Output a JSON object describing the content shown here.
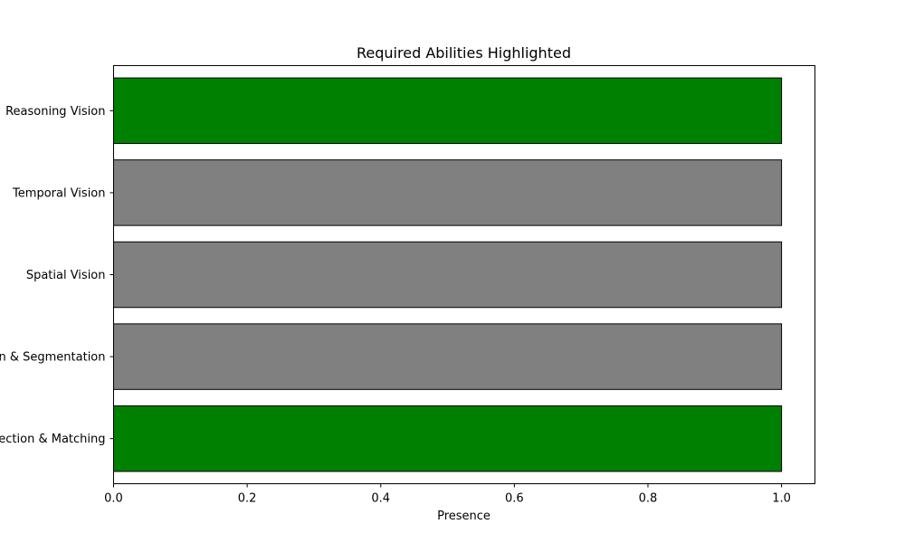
{
  "chart_data": {
    "type": "bar",
    "orientation": "horizontal",
    "title": "Required Abilities Highlighted",
    "xlabel": "Presence",
    "ylabel": "",
    "categories": [
      "Detection & Matching",
      "Recognition & Segmentation",
      "Spatial Vision",
      "Temporal Vision",
      "Reasoning Vision"
    ],
    "values": [
      1.0,
      1.0,
      1.0,
      1.0,
      1.0
    ],
    "bar_colors": [
      "#008000",
      "#808080",
      "#808080",
      "#808080",
      "#008000"
    ],
    "bar_edge_color": "#000000",
    "xlim": [
      0.0,
      1.05
    ],
    "xticks": [
      0.0,
      0.2,
      0.4,
      0.6,
      0.8,
      1.0
    ],
    "xtick_labels": [
      "0.0",
      "0.2",
      "0.4",
      "0.6",
      "0.8",
      "1.0"
    ],
    "grid": false,
    "legend": "none"
  }
}
